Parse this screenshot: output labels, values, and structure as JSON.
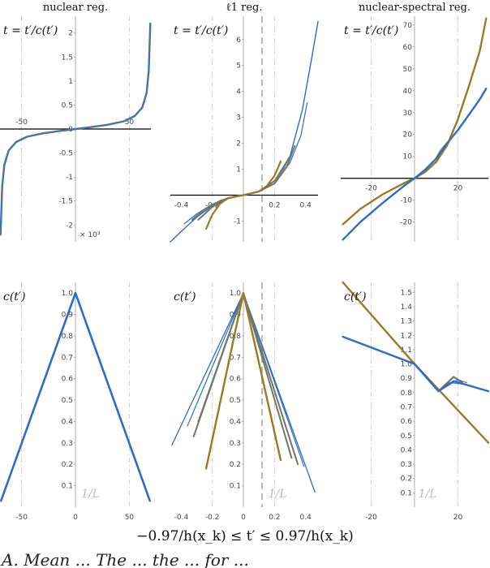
{
  "colors": {
    "blue": "#2e6cc6",
    "gold": "#9a7a25",
    "gray": "#6f7868",
    "grid": "#c8c8c8"
  },
  "xlabel": "−0.97/h(x_k) ≤ t′ ≤ 0.97/h(x_k)",
  "row_labels": {
    "top": "t = t′/c(t′)",
    "bottom": "c(t′)"
  },
  "inv_L_label": "1/L",
  "caption": "A. Mean ... The ... the ... for ... ",
  "chart_data": [
    {
      "id": "top-nuclear",
      "type": "line",
      "title": "nuclear reg.",
      "row": 0,
      "col": 0,
      "ylabel": "t = t′/c(t′)",
      "y_multiplier": "× 10³",
      "xlim": [
        -70,
        70
      ],
      "ylim": [
        -2.35,
        2.35
      ],
      "xticks": [
        -50,
        50
      ],
      "yticks": [
        -2,
        -1.5,
        -1,
        -0.5,
        0,
        0.5,
        1,
        1.5,
        2
      ],
      "xtick_pos": "top",
      "grid_x": [
        -50,
        50
      ],
      "dashed_vline": null,
      "series": [
        {
          "color": "blue",
          "width": 2.4,
          "points": [
            [
              -69.5,
              -2.2
            ],
            [
              -68,
              -1.2
            ],
            [
              -66,
              -0.75
            ],
            [
              -62,
              -0.45
            ],
            [
              -55,
              -0.27
            ],
            [
              -45,
              -0.16
            ],
            [
              -30,
              -0.09
            ],
            [
              -15,
              -0.04
            ],
            [
              0,
              0
            ],
            [
              15,
              0.04
            ],
            [
              30,
              0.09
            ],
            [
              45,
              0.16
            ],
            [
              55,
              0.27
            ],
            [
              62,
              0.45
            ],
            [
              66,
              0.75
            ],
            [
              68,
              1.2
            ],
            [
              69.5,
              2.2
            ]
          ]
        },
        {
          "color": "gray",
          "width": 1.0,
          "points": [
            [
              -69.5,
              -2.2
            ],
            [
              -68,
              -1.2
            ],
            [
              -66,
              -0.75
            ],
            [
              -62,
              -0.45
            ],
            [
              -55,
              -0.27
            ],
            [
              -45,
              -0.16
            ],
            [
              -30,
              -0.09
            ],
            [
              -15,
              -0.04
            ],
            [
              0,
              0
            ],
            [
              15,
              0.04
            ],
            [
              30,
              0.09
            ],
            [
              45,
              0.16
            ],
            [
              55,
              0.27
            ],
            [
              62,
              0.45
            ],
            [
              66,
              0.75
            ],
            [
              68,
              1.2
            ],
            [
              69.5,
              2.2
            ]
          ]
        }
      ]
    },
    {
      "id": "top-l1",
      "type": "line",
      "title": "ℓ1 reg.",
      "row": 0,
      "col": 1,
      "ylabel": "t = t′/c(t′)",
      "xlim": [
        -0.47,
        0.48
      ],
      "ylim": [
        -1.8,
        6.9
      ],
      "xticks": [
        -0.4,
        -0.2,
        0.2,
        0.4
      ],
      "yticks": [
        -1,
        1,
        2,
        3,
        4,
        5,
        6
      ],
      "xtick_pos": "bottom",
      "grid_x": [
        -0.2,
        0.2
      ],
      "dashed_vline": 0.12,
      "series": [
        {
          "color": "blue",
          "width": 1.4,
          "points": [
            [
              -0.47,
              -1.8
            ],
            [
              -0.4,
              -1.4
            ],
            [
              -0.3,
              -0.85
            ],
            [
              -0.2,
              -0.4
            ],
            [
              -0.1,
              -0.12
            ],
            [
              0,
              0
            ],
            [
              0.1,
              0.15
            ],
            [
              0.2,
              0.55
            ],
            [
              0.3,
              1.5
            ],
            [
              0.38,
              3.3
            ],
            [
              0.44,
              5.3
            ],
            [
              0.48,
              6.7
            ]
          ]
        },
        {
          "color": "blue",
          "width": 1.2,
          "points": [
            [
              -0.38,
              -1.1
            ],
            [
              -0.3,
              -0.72
            ],
            [
              -0.2,
              -0.35
            ],
            [
              -0.1,
              -0.1
            ],
            [
              0,
              0
            ],
            [
              0.1,
              0.14
            ],
            [
              0.2,
              0.45
            ],
            [
              0.3,
              1.25
            ],
            [
              0.37,
              2.3
            ],
            [
              0.41,
              3.55
            ]
          ]
        },
        {
          "color": "gray",
          "width": 2.0,
          "points": [
            [
              -0.33,
              -0.95
            ],
            [
              -0.25,
              -0.55
            ],
            [
              -0.15,
              -0.22
            ],
            [
              -0.05,
              -0.04
            ],
            [
              0,
              0
            ],
            [
              0.1,
              0.14
            ],
            [
              0.2,
              0.45
            ],
            [
              0.28,
              1.1
            ],
            [
              0.33,
              1.9
            ]
          ]
        },
        {
          "color": "gray",
          "width": 2.0,
          "points": [
            [
              -0.29,
              -0.95
            ],
            [
              -0.2,
              -0.45
            ],
            [
              -0.1,
              -0.12
            ],
            [
              0,
              0
            ],
            [
              0.1,
              0.14
            ],
            [
              0.2,
              0.55
            ],
            [
              0.26,
              1.05
            ],
            [
              0.29,
              1.4
            ]
          ]
        },
        {
          "color": "gold",
          "width": 2.2,
          "points": [
            [
              -0.24,
              -1.3
            ],
            [
              -0.2,
              -0.75
            ],
            [
              -0.15,
              -0.33
            ],
            [
              -0.1,
              -0.12
            ],
            [
              0,
              0
            ],
            [
              0.1,
              0.14
            ],
            [
              0.15,
              0.35
            ],
            [
              0.2,
              0.75
            ],
            [
              0.24,
              1.3
            ]
          ]
        }
      ]
    },
    {
      "id": "top-nuclear-spectral",
      "type": "line",
      "title": "nuclear-spectral reg.",
      "row": 0,
      "col": 2,
      "ylabel": "t = t′/c(t′)",
      "xlim": [
        -34,
        34
      ],
      "ylim": [
        -29,
        74
      ],
      "xticks": [
        -20,
        20
      ],
      "yticks": [
        -20,
        -10,
        10,
        20,
        30,
        40,
        50,
        60,
        70
      ],
      "xtick_pos": "bottom",
      "grid_x": [
        -20,
        20
      ],
      "dashed_vline": null,
      "series": [
        {
          "color": "gold",
          "width": 2.4,
          "points": [
            [
              -33,
              -21
            ],
            [
              -25,
              -14
            ],
            [
              -15,
              -7.5
            ],
            [
              -5,
              -2.3
            ],
            [
              0,
              0
            ],
            [
              5,
              3
            ],
            [
              10,
              7.5
            ],
            [
              15,
              15
            ],
            [
              20,
              27
            ],
            [
              25,
              42
            ],
            [
              30,
              58
            ],
            [
              33,
              73
            ]
          ]
        },
        {
          "color": "blue",
          "width": 2.4,
          "points": [
            [
              -33,
              -28
            ],
            [
              -25,
              -20
            ],
            [
              -15,
              -11.5
            ],
            [
              -5,
              -3.6
            ],
            [
              0,
              0
            ],
            [
              5,
              4
            ],
            [
              10,
              9
            ],
            [
              15,
              16
            ],
            [
              20,
              22
            ],
            [
              25,
              29
            ],
            [
              30,
              36
            ],
            [
              33,
              41
            ]
          ]
        },
        {
          "color": "gray",
          "width": 1.0,
          "points": [
            [
              9,
              8
            ],
            [
              12,
              13
            ],
            [
              15,
              16.5
            ],
            [
              18,
              19.5
            ]
          ]
        }
      ]
    },
    {
      "id": "bottom-nuclear",
      "type": "line",
      "title": "",
      "row": 1,
      "col": 0,
      "ylabel": "c(t′)",
      "xlim": [
        -70,
        70
      ],
      "ylim": [
        0,
        1.05
      ],
      "xticks": [
        -50,
        0,
        50
      ],
      "yticks": [
        0.1,
        0.2,
        0.3,
        0.4,
        0.5,
        0.6,
        0.7,
        0.8,
        0.9,
        1.0
      ],
      "xtick_pos": "bottom",
      "grid_x": [
        -50,
        50
      ],
      "dashed_vline": null,
      "show_inv_L": true,
      "inv_L_x": 14,
      "series": [
        {
          "color": "blue",
          "width": 2.6,
          "points": [
            [
              -69,
              0.03
            ],
            [
              0,
              1.0
            ],
            [
              69,
              0.03
            ]
          ]
        }
      ]
    },
    {
      "id": "bottom-l1",
      "type": "line",
      "title": "",
      "row": 1,
      "col": 1,
      "ylabel": "c(t′)",
      "xlim": [
        -0.47,
        0.48
      ],
      "ylim": [
        0,
        1.05
      ],
      "xticks": [
        -0.4,
        -0.2,
        0,
        0.2,
        0.4
      ],
      "yticks": [
        0.1,
        0.2,
        0.3,
        0.4,
        0.5,
        0.6,
        0.7,
        0.8,
        0.9,
        1.0
      ],
      "xtick_pos": "bottom",
      "grid_x": [
        -0.2,
        0.2
      ],
      "dashed_vline": 0.12,
      "show_inv_L": true,
      "inv_L_x": 0.22,
      "series": [
        {
          "color": "blue",
          "width": 1.3,
          "points": [
            [
              -0.46,
              0.29
            ],
            [
              0,
              1.0
            ],
            [
              0.46,
              0.07
            ]
          ]
        },
        {
          "color": "blue",
          "width": 1.2,
          "points": [
            [
              -0.36,
              0.38
            ],
            [
              0,
              1.0
            ],
            [
              0.39,
              0.19
            ]
          ]
        },
        {
          "color": "gray",
          "width": 2.0,
          "points": [
            [
              -0.32,
              0.33
            ],
            [
              0,
              1.0
            ],
            [
              0.35,
              0.2
            ]
          ]
        },
        {
          "color": "gray",
          "width": 2.0,
          "points": [
            [
              -0.29,
              0.4
            ],
            [
              0,
              1.0
            ],
            [
              0.31,
              0.23
            ]
          ]
        },
        {
          "color": "gold",
          "width": 2.4,
          "points": [
            [
              -0.24,
              0.18
            ],
            [
              0,
              1.0
            ],
            [
              0.24,
              0.22
            ]
          ]
        }
      ]
    },
    {
      "id": "bottom-nuclear-spectral",
      "type": "line",
      "title": "",
      "row": 1,
      "col": 2,
      "ylabel": "c(t′)",
      "xlim": [
        -34,
        34
      ],
      "ylim": [
        0,
        1.57
      ],
      "xticks": [
        -20,
        20
      ],
      "yticks": [
        0.1,
        0.2,
        0.3,
        0.4,
        0.5,
        0.6,
        0.7,
        0.8,
        0.9,
        1.0,
        1.1,
        1.2,
        1.3,
        1.4,
        1.5
      ],
      "xtick_pos": "bottom",
      "grid_x": [
        -20,
        20
      ],
      "dashed_vline": null,
      "show_inv_L": true,
      "inv_L_x": 6,
      "series": [
        {
          "color": "gold",
          "width": 2.4,
          "points": [
            [
              -33,
              1.57
            ],
            [
              0,
              1.0
            ],
            [
              34,
              0.45
            ]
          ]
        },
        {
          "color": "blue",
          "width": 2.4,
          "points": [
            [
              -33,
              1.19
            ],
            [
              0,
              1.0
            ],
            [
              11,
              0.81
            ],
            [
              18,
              0.88
            ],
            [
              34,
              0.81
            ]
          ]
        },
        {
          "color": "gray",
          "width": 2.2,
          "points": [
            [
              11,
              0.81
            ],
            [
              18,
              0.91
            ],
            [
              22,
              0.87
            ]
          ]
        },
        {
          "color": "blue",
          "width": 1.1,
          "points": [
            [
              11,
              0.81
            ],
            [
              20,
              0.89
            ],
            [
              24,
              0.87
            ]
          ]
        },
        {
          "color": "blue",
          "width": 1.1,
          "points": [
            [
              11,
              0.81
            ],
            [
              16,
              0.87
            ],
            [
              22,
              0.86
            ]
          ]
        }
      ]
    }
  ]
}
